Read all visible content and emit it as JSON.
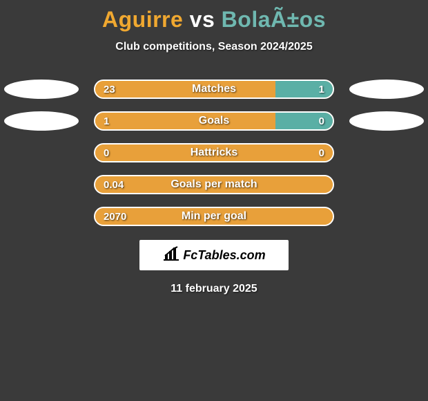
{
  "colors": {
    "background": "#3a3a3a",
    "title_left": "#f0a830",
    "title_vs": "#ffffff",
    "title_right": "#6fb8b0",
    "ellipse": "#ffffff",
    "bar_left": "#e8a03a",
    "bar_right": "#5aafa5",
    "bar_border": "#ffffff",
    "text": "#ffffff",
    "logo_bg": "#ffffff",
    "logo_text": "#000000"
  },
  "title": {
    "left_name": "Aguirre",
    "vs": "vs",
    "right_name": "BolaÃ±os"
  },
  "subtitle": "Club competitions, Season 2024/2025",
  "bar_track_width": 348,
  "stats": [
    {
      "label": "Matches",
      "left_value": "23",
      "right_value": "1",
      "left_width": 265,
      "right_width": 83,
      "show_ellipses": true
    },
    {
      "label": "Goals",
      "left_value": "1",
      "right_value": "0",
      "left_width": 265,
      "right_width": 83,
      "show_ellipses": true
    },
    {
      "label": "Hattricks",
      "left_value": "0",
      "right_value": "0",
      "left_width": 348,
      "right_width": 0,
      "show_ellipses": false
    },
    {
      "label": "Goals per match",
      "left_value": "0.04",
      "right_value": "",
      "left_width": 348,
      "right_width": 0,
      "show_ellipses": false
    },
    {
      "label": "Min per goal",
      "left_value": "2070",
      "right_value": "",
      "left_width": 348,
      "right_width": 0,
      "show_ellipses": false
    }
  ],
  "logo": {
    "text": "FcTables.com"
  },
  "date": "11 february 2025"
}
